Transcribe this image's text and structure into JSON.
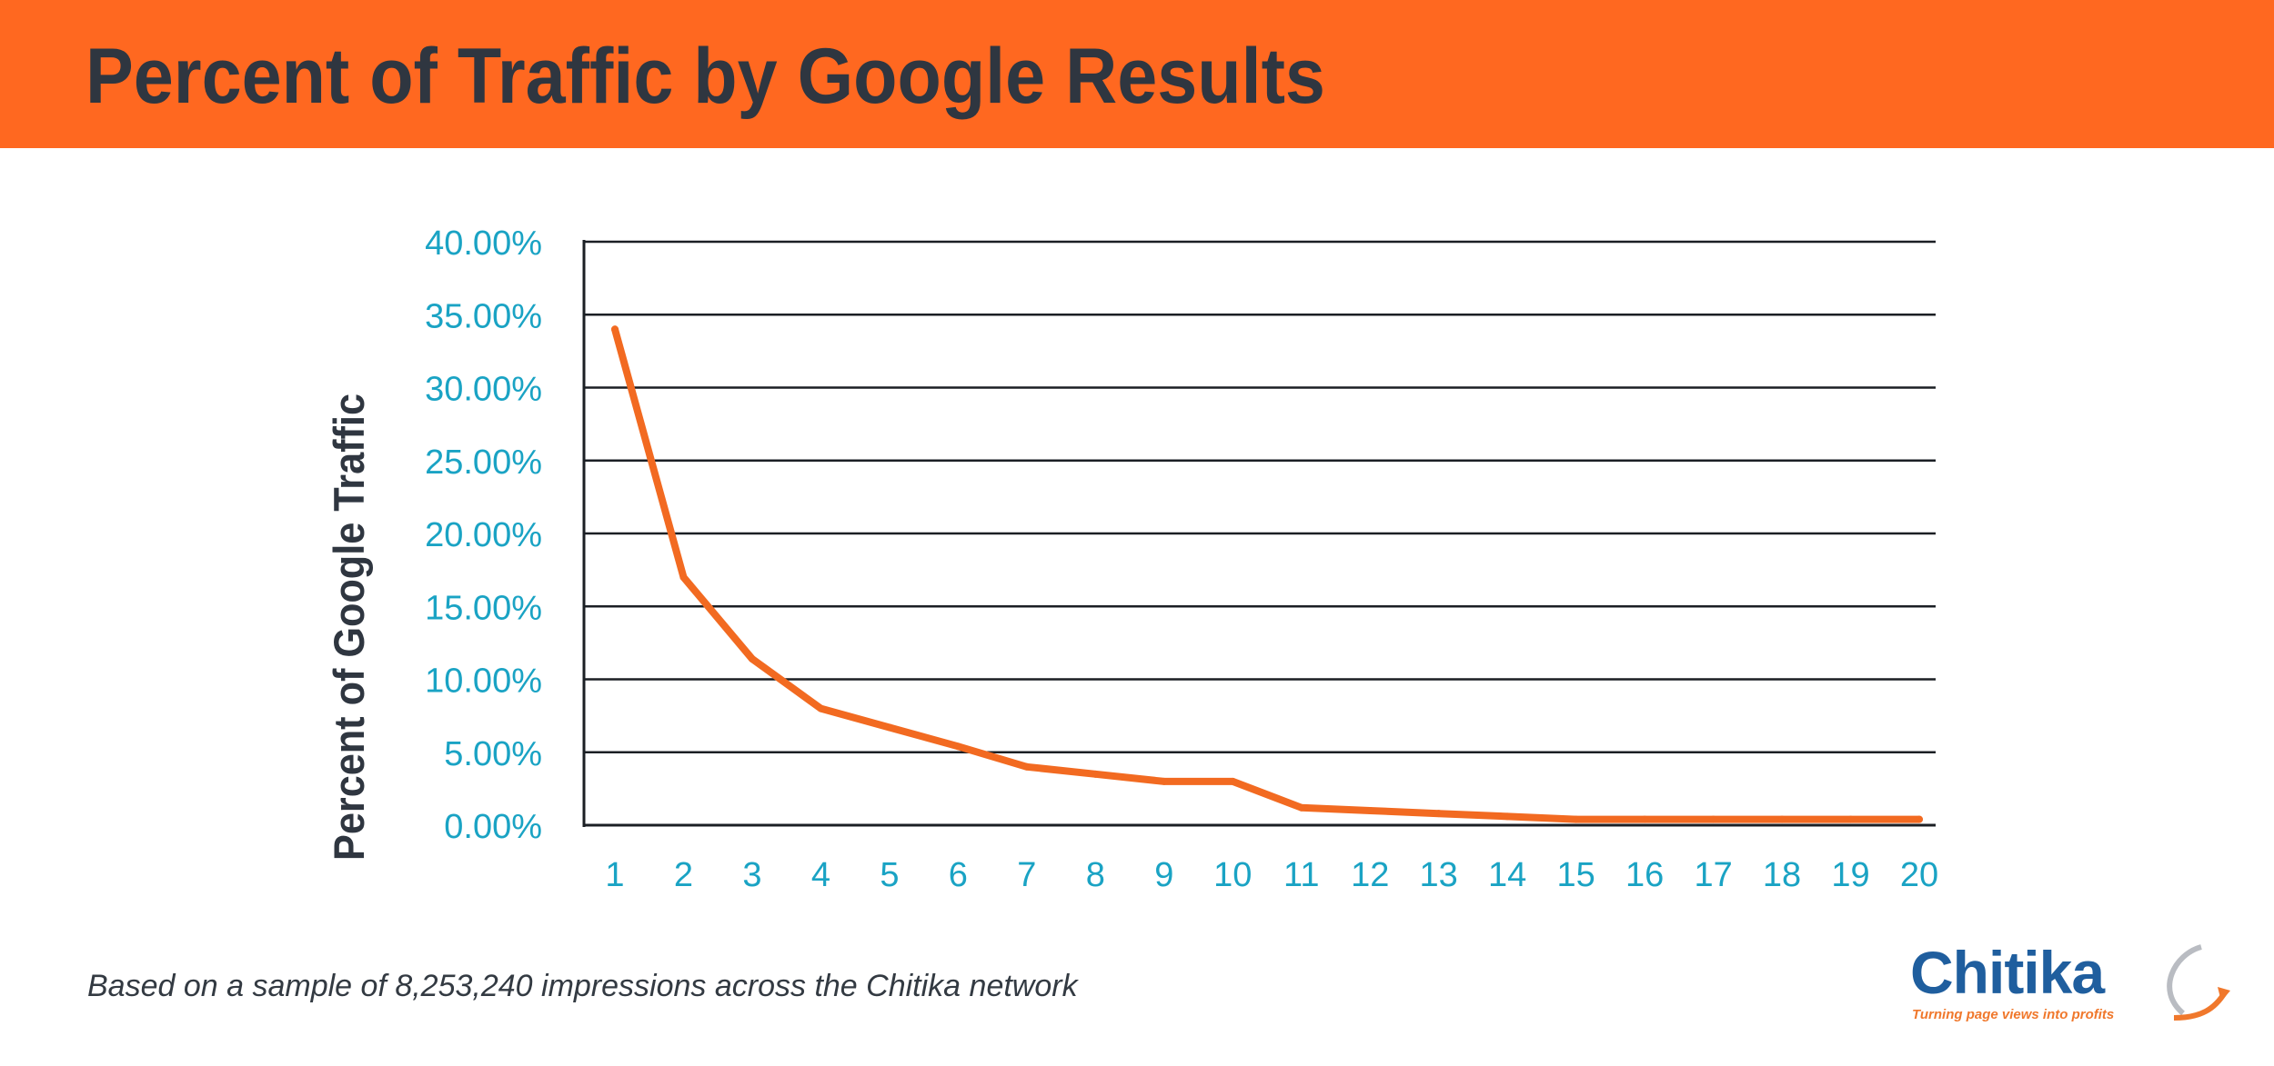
{
  "header": {
    "title": "Percent of Traffic by Google Results"
  },
  "colors": {
    "header_bg": "#ff6820",
    "title_text": "#2f3640",
    "tick_text": "#1aa3c4",
    "line": "#f26a21",
    "grid": "#1b1f24"
  },
  "chart_data": {
    "type": "line",
    "title": "",
    "xlabel": "",
    "ylabel": "Percent of Google Traffic",
    "x": [
      1,
      2,
      3,
      4,
      5,
      6,
      7,
      8,
      9,
      10,
      11,
      12,
      13,
      14,
      15,
      16,
      17,
      18,
      19,
      20
    ],
    "y_tick_labels": [
      "0.00%",
      "5.00%",
      "10.00%",
      "15.00%",
      "20.00%",
      "25.00%",
      "30.00%",
      "35.00%",
      "40.00%"
    ],
    "ylim": [
      0,
      40
    ],
    "grid": true,
    "legend": "none",
    "series": [
      {
        "values": [
          34.0,
          17.0,
          11.4,
          8.0,
          6.7,
          5.4,
          4.0,
          3.5,
          3.0,
          3.0,
          1.2,
          1.0,
          0.8,
          0.6,
          0.4,
          0.4,
          0.4,
          0.4,
          0.4,
          0.4
        ]
      }
    ]
  },
  "footnote": "Based on a sample of 8,253,240 impressions across the Chitika network",
  "logo": {
    "name": "Chitika",
    "tagline": "Turning page views into profits"
  }
}
